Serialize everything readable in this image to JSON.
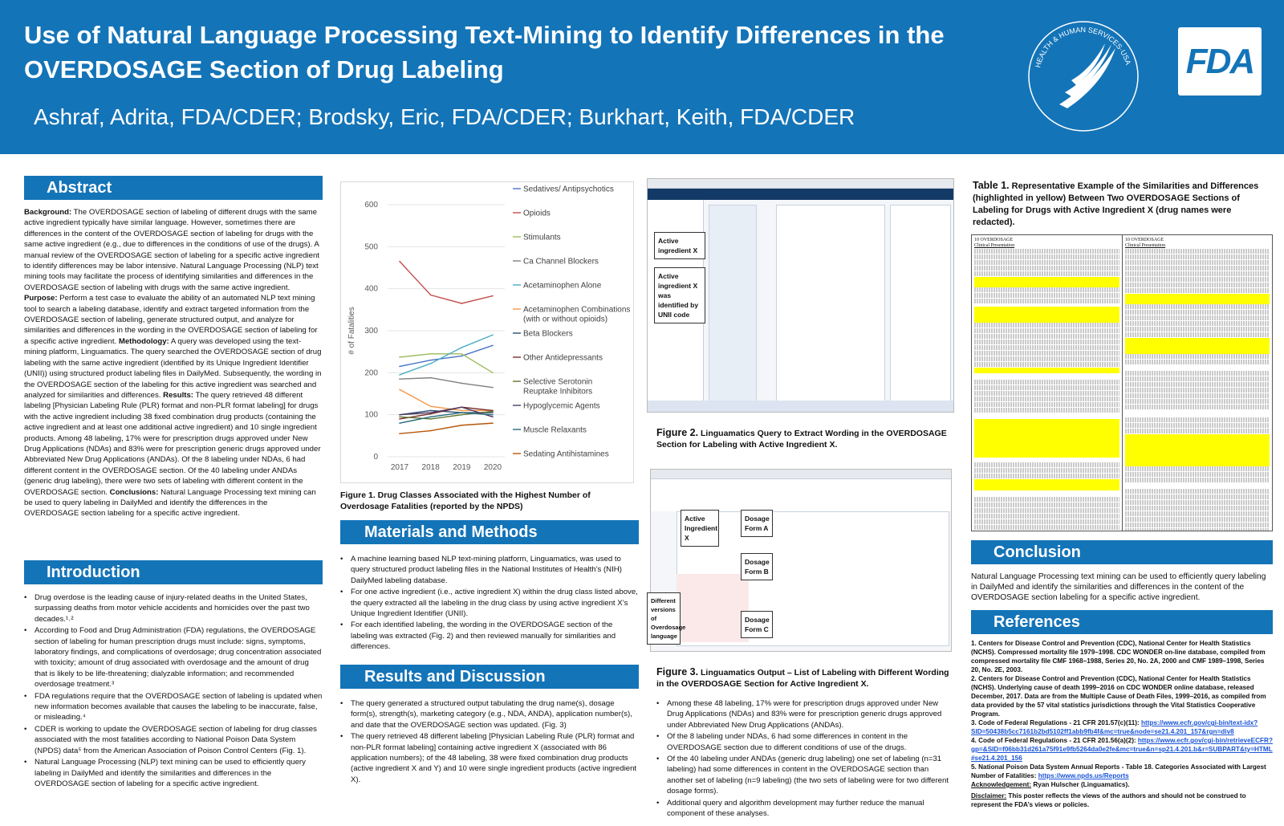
{
  "header": {
    "title": "Use of Natural Language Processing Text-Mining to Identify Differences in the OVERDOSAGE Section of Drug Labeling",
    "authors": "Ashraf, Adrita, FDA/CDER; Brodsky, Eric, FDA/CDER; Burkhart, Keith, FDA/CDER",
    "seal_text": "HEALTH & HUMAN SERVICES·USA",
    "fda_logo": "FDA"
  },
  "abstract": {
    "heading": "Abstract",
    "background_label": "Background:",
    "background": " The OVERDOSAGE section of labeling of different drugs with the same active ingredient typically have similar language. However, sometimes there are differences in the content of the OVERDOSAGE section of labeling for drugs with the same active ingredient (e.g., due to differences in the conditions of use of the drugs).  A manual review of the OVERDOSAGE section of labeling for a specific active ingredient to identify differences may be labor intensive. Natural Language Processing (NLP) text mining tools may facilitate the process of identifying similarities and differences in the OVERDOSAGE section of labeling with drugs with the same active ingredient.",
    "purpose_label": "Purpose:",
    "purpose": " Perform a test case to evaluate the ability of an automated NLP text mining tool to search a labeling database, identify and extract targeted information from the OVERDOSAGE section of labeling, generate structured output, and analyze for similarities and differences in the wording in the OVERDOSAGE section of labeling for a specific active ingredient.",
    "methodology_label": "Methodology:",
    "methodology": " A query was developed using the text-mining platform, Linguamatics. The query searched the OVERDOSAGE section of drug labeling with the same active ingredient (identified by its Unique Ingredient Identifier (UNII)) using structured product labeling files in DailyMed. Subsequently, the wording in the OVERDOSAGE section of the labeling for this active ingredient was searched and analyzed for similarities and differences.",
    "results_label": "Results:",
    "results": " The query retrieved 48 different labeling [Physician Labeling Rule (PLR) format and non-PLR format labeling] for drugs with the active ingredient including 38 fixed combination drug products (containing the active ingredient and at least one additional active ingredient) and 10 single ingredient products. Among 48 labeling, 17% were for prescription drugs approved under New Drug Applications (NDAs) and 83% were for prescription generic drugs approved under Abbreviated New Drug Applications (ANDAs). Of the 8 labeling under NDAs, 6 had different content in the OVERDOSAGE section.  Of the 40 labeling under ANDAs (generic drug labeling), there were two sets of labeling with different content in the OVERDOSAGE section.",
    "conclusions_label": "Conclusions:",
    "conclusions": " Natural Language Processing text mining can be used to query labeling in DailyMed and identify the differences in the OVERDOSAGE section labeling for a specific active ingredient."
  },
  "introduction": {
    "heading": "Introduction",
    "bullets": [
      "Drug overdose is the leading cause of injury-related deaths in the United States, surpassing deaths from motor vehicle accidents and homicides over the past two decades.¹˒²",
      "According to Food and Drug Administration (FDA) regulations, the OVERDOSAGE section of labeling for human prescription drugs must include: signs, symptoms, laboratory findings, and complications of overdosage; drug concentration associated with toxicity; amount of drug associated with overdosage and the amount of drug that is likely to be life-threatening; dialyzable information; and recommended overdosage treatment.³",
      "FDA regulations require that the OVERDOSAGE section of labeling is updated when new information becomes available that causes the labeling to be inaccurate, false, or misleading.⁴",
      "CDER is working to update the OVERDOSAGE section of labeling for drug classes associated with the most fatalities according to National Poison Data System (NPDS) data⁵ from the American Association of Poison Control Centers (Fig. 1).",
      "Natural Language Processing (NLP) text mining can be used to efficiently query labeling in DailyMed and identify the similarities and differences in the OVERDOSAGE section of labeling for a specific active ingredient."
    ]
  },
  "figure1": {
    "caption": "Figure 1. Drug Classes Associated with the Highest Number of Overdosage Fatalities (reported by the NPDS)"
  },
  "chart_data": {
    "type": "line",
    "x": [
      2017,
      2018,
      2019,
      2020
    ],
    "ylabel": "# of Fatalities",
    "ylim": [
      0,
      600
    ],
    "yticks": [
      0,
      100,
      200,
      300,
      400,
      500,
      600
    ],
    "legend_position": "right",
    "series": [
      {
        "name": "Sedatives/ Antipsychotics",
        "color": "#4a72c4",
        "values": [
          215,
          230,
          240,
          265
        ]
      },
      {
        "name": "Opioids",
        "color": "#c0504d",
        "values": [
          465,
          385,
          365,
          383
        ]
      },
      {
        "name": "Stimulants",
        "color": "#9bbb59",
        "values": [
          237,
          245,
          245,
          200
        ]
      },
      {
        "name": "Ca Channel Blockers",
        "color": "#7f7f7f",
        "values": [
          185,
          188,
          175,
          165
        ]
      },
      {
        "name": "Acetaminophen Alone",
        "color": "#4bacc6",
        "values": [
          195,
          222,
          260,
          290
        ]
      },
      {
        "name": "Acetaminophen Combinations (with or without opioids)",
        "color": "#f79646",
        "values": [
          160,
          120,
          110,
          110
        ]
      },
      {
        "name": "Beta Blockers",
        "color": "#2c4d75",
        "values": [
          100,
          110,
          105,
          105
        ]
      },
      {
        "name": "Other Antidepressants",
        "color": "#772c2a",
        "values": [
          90,
          102,
          118,
          110
        ]
      },
      {
        "name": "Selective Serotonin Reuptake Inhibitors",
        "color": "#5f7530",
        "values": [
          95,
          90,
          100,
          108
        ]
      },
      {
        "name": "Hypoglycemic Agents",
        "color": "#4d3b62",
        "values": [
          100,
          105,
          118,
          95
        ]
      },
      {
        "name": "Muscle Relaxants",
        "color": "#276a7c",
        "values": [
          80,
          95,
          105,
          100
        ]
      },
      {
        "name": "Sedating Antihistamines",
        "color": "#b65708",
        "values": [
          55,
          62,
          75,
          80
        ]
      }
    ]
  },
  "materials": {
    "heading": "Materials and Methods",
    "bullets": [
      "A machine learning based NLP text-mining platform, Linguamatics, was used to query structured product labeling files in the National Institutes of Health’s (NIH) DailyMed labeling database.",
      "For one active ingredient (i.e., active ingredient X) within the drug class listed above, the query extracted all the labeling in the drug class by using active ingredient X’s Unique Ingredient Identifier (UNII).",
      "For each identified labeling, the wording in the OVERDOSAGE section of the labeling was extracted (Fig. 2) and then reviewed manually for similarities and differences."
    ]
  },
  "results": {
    "heading": "Results and Discussion",
    "bullets": [
      "The query generated a structured output tabulating the drug name(s), dosage form(s), strength(s), marketing category (e.g., NDA, ANDA), application number(s), and date that the OVERDOSAGE section was updated. (Fig. 3)",
      "The query retrieved 48 different labeling [Physician Labeling Rule (PLR) format and non-PLR format labeling] containing active ingredient X (associated with 86 application numbers); of the 48 labeling, 38 were fixed combination drug products (active ingredient X and Y) and 10 were single ingredient products (active ingredient X)."
    ],
    "bullets2": [
      "Among these 48 labeling, 17% were for prescription drugs approved under New Drug Applications (NDAs) and 83% were for prescription generic drugs approved under Abbreviated New Drug Applications (ANDAs).",
      "Of the 8 labeling under NDAs, 6 had some differences in content in the OVERDOSAGE section due to different conditions of use of the drugs.",
      "Of the 40 labeling under ANDAs (generic drug labeling) one set of labeling (n=31 labeling) had some differences in content in the OVERDOSAGE section than another set of labeling (n=9 labeling) (the two sets of labeling were for two different dosage forms).",
      "Additional query and algorithm development may further reduce the manual component of these analyses."
    ]
  },
  "figure2": {
    "caption_label": "Figure 2.",
    "caption": " Linguamatics Query to Extract Wording in the OVERDOSAGE Section for Labeling with Active Ingredient X.",
    "callout1": "Active ingredient X",
    "callout2": "Active ingredient X was identified by UNII code"
  },
  "figure3": {
    "caption_label": "Figure 3.",
    "caption": " Linguamatics Output – List of Labeling with Different Wording in the OVERDOSAGE Section for Active Ingredient X.",
    "callout_active": "Active Ingredient X",
    "callout_a": "Dosage Form A",
    "callout_b": "Dosage Form B",
    "callout_c": "Dosage Form C",
    "callout_diff": "Different versions of Overdosage language"
  },
  "table1": {
    "caption_label": "Table 1.",
    "caption": " Representative Example of the Similarities and Differences (highlighted in yellow) Between Two OVERDOSAGE Sections of Labeling for Drugs with Active Ingredient X (drug names were redacted).",
    "left_head": "10 OVERDOSAGE",
    "left_sub": "Clinical Presentation",
    "right_head": "10 OVERDOSAGE",
    "right_sub": "Clinical Presentation"
  },
  "conclusion": {
    "heading": "Conclusion",
    "text": "Natural Language Processing text mining can be used to efficiently query labeling in DailyMed and identify the similarities and differences in the content of the OVERDOSAGE section labeling for a specific active ingredient."
  },
  "references": {
    "heading": "References",
    "items": [
      "1. Centers for Disease Control and Prevention (CDC), National Center for Health Statistics (NCHS). Compressed mortality file 1979–1998. CDC WONDER on-line database, compiled from compressed mortality file CMF 1968–1988, Series 20, No. 2A, 2000 and CMF 1989–1998, Series 20, No. 2E, 2003.",
      "2. Centers for Disease Control and Prevention (CDC), National Center for Health Statistics (NCHS). Underlying cause of death 1999–2016 on CDC WONDER online database, released December, 2017. Data are from the Multiple Cause of Death Files, 1999–2016, as compiled from data provided by the 57 vital statistics jurisdictions through the Vital Statistics Cooperative Program.",
      "3. Code of Federal Regulations - 21 CFR 201.57(c)(11): ",
      "4. Code of Federal Regulations - 21 CFR 201.56(a)(2): ",
      "5. National Poison Data System Annual Reports - Table 18. Categories Associated with Largest Number of Fatalities: "
    ],
    "link3": "https://www.ecfr.gov/cgi-bin/text-idx?SID=50438b5cc7161b2bd5102ff1abb9fb4f&mc=true&node=se21.4.201_157&rgn=div8",
    "link4": "https://www.ecfr.gov/cgi-bin/retrieveECFR?gp=&SID=f06bb31d261a75f91e9fb5264da0e2fe&mc=true&n=sp21.4.201.b&r=SUBPART&ty=HTML#se21.4.201_156",
    "link5": "https://www.npds.us/Reports",
    "ack_label": "Acknowledgement:",
    "ack": " Ryan Hulscher (Linguamatics).",
    "disc_label": "Disclaimer:",
    "disc": " This poster reflects the views of the authors  and should not be construed to represent the FDA’s views or policies."
  }
}
